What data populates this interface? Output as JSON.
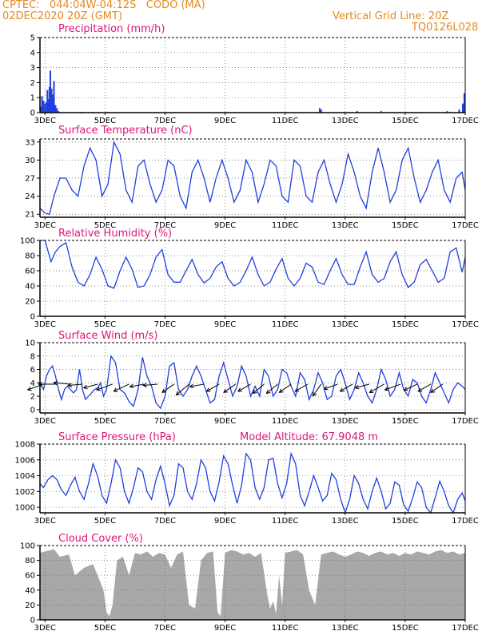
{
  "header": {
    "line1": "CPTEC:   044:04W-04:12S   CODO (MA)",
    "line2": "02DEC2020 20Z (GMT)",
    "right1": "Vertical Grid Line: 20Z",
    "right2": "TQ0126L028"
  },
  "x_axis": {
    "start_day": 2.833,
    "end_day": 17.0,
    "ticks": [
      {
        "day": 3,
        "label": "3DEC"
      },
      {
        "day": 5,
        "label": "5DEC"
      },
      {
        "day": 7,
        "label": "7DEC"
      },
      {
        "day": 9,
        "label": "9DEC"
      },
      {
        "day": 11,
        "label": "11DEC"
      },
      {
        "day": 13,
        "label": "13DEC"
      },
      {
        "day": 15,
        "label": "15DEC"
      },
      {
        "day": 17,
        "label": "17DEC"
      }
    ]
  },
  "chart_data": [
    {
      "type": "bar",
      "title": "Precipitation (mm/h)",
      "ylim": [
        0,
        5
      ],
      "yticks": [
        0,
        1,
        2,
        3,
        4,
        5
      ],
      "color": "#1f3fe0",
      "x": [
        2.85,
        2.9,
        2.95,
        3.0,
        3.05,
        3.08,
        3.12,
        3.15,
        3.18,
        3.22,
        3.26,
        3.3,
        3.35,
        3.4,
        3.45,
        4.2,
        4.6,
        5.1,
        12.15,
        12.2,
        13.4,
        14.2,
        16.4,
        16.8,
        16.92,
        16.97
      ],
      "values": [
        0.4,
        1.1,
        0.8,
        0.6,
        0.7,
        1.5,
        0.9,
        1.7,
        2.8,
        1.6,
        1.2,
        2.1,
        0.5,
        0.3,
        0.1,
        0.05,
        0.05,
        0.05,
        0.3,
        0.2,
        0.1,
        0.1,
        0.1,
        0.2,
        0.6,
        1.3
      ]
    },
    {
      "type": "line",
      "title": "Surface Temperature (nC)",
      "ylim": [
        20.5,
        33.5
      ],
      "yticks": [
        21,
        24,
        27,
        30,
        33
      ],
      "color": "#1f3fe0",
      "x": [
        2.83,
        3.0,
        3.15,
        3.3,
        3.5,
        3.7,
        3.9,
        4.1,
        4.3,
        4.5,
        4.7,
        4.9,
        5.1,
        5.3,
        5.5,
        5.7,
        5.9,
        6.1,
        6.3,
        6.5,
        6.7,
        6.9,
        7.1,
        7.3,
        7.5,
        7.7,
        7.9,
        8.1,
        8.3,
        8.5,
        8.7,
        8.9,
        9.1,
        9.3,
        9.5,
        9.7,
        9.9,
        10.1,
        10.3,
        10.5,
        10.7,
        10.9,
        11.1,
        11.3,
        11.5,
        11.7,
        11.9,
        12.1,
        12.3,
        12.5,
        12.7,
        12.9,
        13.1,
        13.3,
        13.5,
        13.7,
        13.9,
        14.1,
        14.3,
        14.5,
        14.7,
        14.9,
        15.1,
        15.3,
        15.5,
        15.7,
        15.9,
        16.1,
        16.3,
        16.5,
        16.7,
        16.9,
        17.0
      ],
      "values": [
        22,
        21.2,
        21,
        24,
        27,
        27,
        25,
        24,
        29,
        32,
        30,
        24,
        26,
        33,
        31,
        25,
        23,
        29,
        30,
        26,
        23,
        25,
        30,
        29,
        24,
        22,
        28,
        30,
        27,
        23,
        27,
        30,
        27,
        23,
        25,
        30,
        28,
        23,
        26,
        30,
        29,
        24,
        23,
        30,
        29,
        24,
        23,
        28,
        30,
        26,
        23,
        26,
        31,
        28,
        24,
        22,
        28,
        32,
        28,
        23,
        25,
        30,
        32,
        27,
        23,
        25,
        28,
        30,
        25,
        23,
        27,
        28,
        25
      ]
    },
    {
      "type": "line",
      "title": "Relative Humidity (%)",
      "ylim": [
        0,
        100
      ],
      "yticks": [
        0,
        20,
        40,
        60,
        80,
        100
      ],
      "color": "#1f3fe0",
      "x": [
        2.83,
        3.0,
        3.2,
        3.35,
        3.5,
        3.7,
        3.9,
        4.1,
        4.3,
        4.5,
        4.7,
        4.9,
        5.1,
        5.3,
        5.5,
        5.7,
        5.9,
        6.1,
        6.3,
        6.5,
        6.7,
        6.9,
        7.1,
        7.3,
        7.5,
        7.7,
        7.9,
        8.1,
        8.3,
        8.5,
        8.7,
        8.9,
        9.1,
        9.3,
        9.5,
        9.7,
        9.9,
        10.1,
        10.3,
        10.5,
        10.7,
        10.9,
        11.1,
        11.3,
        11.5,
        11.7,
        11.9,
        12.1,
        12.3,
        12.5,
        12.7,
        12.9,
        13.1,
        13.3,
        13.5,
        13.7,
        13.9,
        14.1,
        14.3,
        14.5,
        14.7,
        14.9,
        15.1,
        15.3,
        15.5,
        15.7,
        15.9,
        16.1,
        16.3,
        16.5,
        16.7,
        16.9,
        17.0
      ],
      "values": [
        100,
        100,
        72,
        85,
        92,
        97,
        65,
        45,
        40,
        55,
        78,
        62,
        40,
        37,
        60,
        78,
        62,
        38,
        40,
        55,
        78,
        88,
        55,
        45,
        45,
        60,
        75,
        55,
        44,
        50,
        65,
        72,
        50,
        40,
        45,
        60,
        78,
        55,
        40,
        45,
        62,
        76,
        50,
        40,
        50,
        70,
        65,
        45,
        42,
        60,
        76,
        55,
        42,
        42,
        65,
        85,
        55,
        45,
        50,
        72,
        85,
        55,
        38,
        45,
        68,
        75,
        60,
        45,
        50,
        85,
        90,
        58,
        78
      ]
    },
    {
      "type": "line",
      "title": "Surface Wind (m/s)",
      "ylim": [
        -0.5,
        10
      ],
      "yticks": [
        0,
        2,
        4,
        6,
        8,
        10
      ],
      "color": "#1f3fe0",
      "x": [
        2.83,
        2.95,
        3.05,
        3.15,
        3.25,
        3.35,
        3.45,
        3.55,
        3.65,
        3.75,
        3.85,
        3.95,
        4.05,
        4.15,
        4.25,
        4.35,
        4.45,
        4.55,
        4.65,
        4.75,
        4.85,
        4.95,
        5.05,
        5.2,
        5.35,
        5.5,
        5.65,
        5.8,
        5.95,
        6.1,
        6.25,
        6.4,
        6.55,
        6.7,
        6.85,
        7.0,
        7.15,
        7.3,
        7.45,
        7.6,
        7.75,
        7.9,
        8.05,
        8.2,
        8.35,
        8.5,
        8.65,
        8.8,
        8.95,
        9.1,
        9.25,
        9.4,
        9.55,
        9.7,
        9.85,
        10.0,
        10.15,
        10.3,
        10.45,
        10.6,
        10.75,
        10.9,
        11.05,
        11.2,
        11.35,
        11.5,
        11.65,
        11.8,
        11.95,
        12.1,
        12.25,
        12.4,
        12.55,
        12.7,
        12.85,
        13.0,
        13.15,
        13.3,
        13.45,
        13.6,
        13.75,
        13.9,
        14.05,
        14.2,
        14.35,
        14.5,
        14.65,
        14.8,
        14.95,
        15.1,
        15.25,
        15.4,
        15.55,
        15.7,
        15.85,
        16.0,
        16.15,
        16.3,
        16.45,
        16.6,
        16.75,
        16.9,
        17.0
      ],
      "values": [
        4,
        3,
        5,
        6,
        6.5,
        5,
        3,
        1.5,
        3,
        3.5,
        3,
        2.5,
        3,
        6,
        3,
        1.5,
        2,
        2.5,
        3,
        3.2,
        4,
        2,
        3,
        8,
        7,
        3,
        2.5,
        1.2,
        0.5,
        3,
        7.8,
        5,
        3.5,
        1,
        0.2,
        2,
        6.5,
        7,
        3,
        2,
        3,
        5,
        6.5,
        5,
        3,
        1,
        1.5,
        5,
        7,
        4.5,
        2,
        3.5,
        6.5,
        5,
        2,
        3.5,
        2,
        6,
        5,
        2,
        3,
        6,
        5.5,
        3.5,
        2,
        5.5,
        4.5,
        1.5,
        3,
        5.5,
        4,
        1.5,
        2,
        5,
        6,
        4,
        1.5,
        3,
        5.5,
        4,
        2,
        1,
        3,
        6,
        4.5,
        2,
        3,
        5.5,
        3,
        2,
        4.5,
        4,
        2,
        1,
        3,
        5.5,
        4,
        2.5,
        1,
        3,
        4,
        3.5,
        3
      ]
    },
    {
      "type": "line",
      "title": "Surface Pressure (hPa)",
      "ylim": [
        999.3,
        1008
      ],
      "yticks": [
        1000,
        1002,
        1004,
        1006,
        1008
      ],
      "color": "#1f3fe0",
      "x": [
        2.83,
        2.95,
        3.1,
        3.25,
        3.4,
        3.55,
        3.7,
        3.85,
        4.0,
        4.15,
        4.3,
        4.45,
        4.6,
        4.75,
        4.9,
        5.05,
        5.2,
        5.35,
        5.5,
        5.65,
        5.8,
        5.95,
        6.1,
        6.25,
        6.4,
        6.55,
        6.7,
        6.85,
        7.0,
        7.15,
        7.3,
        7.45,
        7.6,
        7.75,
        7.9,
        8.05,
        8.2,
        8.35,
        8.5,
        8.65,
        8.8,
        8.95,
        9.1,
        9.25,
        9.4,
        9.55,
        9.7,
        9.85,
        10.0,
        10.15,
        10.3,
        10.45,
        10.6,
        10.75,
        10.9,
        11.05,
        11.2,
        11.35,
        11.5,
        11.65,
        11.8,
        11.95,
        12.1,
        12.25,
        12.4,
        12.55,
        12.7,
        12.85,
        13.0,
        13.15,
        13.3,
        13.45,
        13.6,
        13.75,
        13.9,
        14.05,
        14.2,
        14.35,
        14.5,
        14.65,
        14.8,
        14.95,
        15.1,
        15.25,
        15.4,
        15.55,
        15.7,
        15.85,
        16.0,
        16.15,
        16.3,
        16.45,
        16.6,
        16.75,
        16.9,
        17.0
      ],
      "values": [
        1003,
        1002.5,
        1003.5,
        1004,
        1003.5,
        1002.2,
        1001.5,
        1002.8,
        1003.8,
        1002,
        1001,
        1003,
        1005.5,
        1004,
        1001.5,
        1000.5,
        1003,
        1006,
        1005,
        1002,
        1000.5,
        1002.5,
        1005,
        1004.5,
        1002,
        1001,
        1003.5,
        1005.2,
        1003,
        1000.2,
        1001.5,
        1005.5,
        1005,
        1002,
        1001,
        1003,
        1006,
        1005,
        1002,
        1000.8,
        1003.2,
        1006.5,
        1005.5,
        1002.8,
        1000.5,
        1002.8,
        1006.8,
        1006,
        1002.5,
        1001,
        1002.5,
        1006,
        1006.2,
        1003,
        1001.2,
        1003,
        1006.8,
        1005.5,
        1001.5,
        1000.2,
        1002,
        1004,
        1002.5,
        1000.8,
        1001.5,
        1004.3,
        1003.5,
        1001,
        999.3,
        1001,
        1004,
        1003,
        1001,
        999.8,
        1002,
        1003.7,
        1002,
        999.8,
        1000.5,
        1003.2,
        1002.8,
        1000.3,
        999.5,
        1001.2,
        1003.2,
        1002.5,
        1000,
        999.3,
        1001.2,
        1003.3,
        1002,
        1000.2,
        999.3,
        1001,
        1001.8,
        1000.8
      ],
      "annotation": "Model Altitude: 67.9048 m"
    },
    {
      "type": "area",
      "title": "Cloud Cover (%)",
      "ylim": [
        0,
        100
      ],
      "yticks": [
        0,
        20,
        40,
        60,
        80,
        100
      ],
      "color": "#a8a8a8",
      "x": [
        2.83,
        3.0,
        3.3,
        3.5,
        3.8,
        4.0,
        4.3,
        4.6,
        4.8,
        4.95,
        5.05,
        5.15,
        5.25,
        5.4,
        5.6,
        5.8,
        6.0,
        6.2,
        6.4,
        6.6,
        6.8,
        7.0,
        7.2,
        7.4,
        7.6,
        7.8,
        8.0,
        8.2,
        8.4,
        8.6,
        8.75,
        8.85,
        9.0,
        9.2,
        9.4,
        9.6,
        9.8,
        10.0,
        10.2,
        10.4,
        10.5,
        10.6,
        10.7,
        10.8,
        10.9,
        11.0,
        11.2,
        11.4,
        11.6,
        11.8,
        12.0,
        12.2,
        12.4,
        12.6,
        12.8,
        13.0,
        13.2,
        13.4,
        13.6,
        13.8,
        14.0,
        14.2,
        14.4,
        14.6,
        14.8,
        15.0,
        15.2,
        15.4,
        15.6,
        15.8,
        16.0,
        16.2,
        16.4,
        16.6,
        16.8,
        17.0
      ],
      "values": [
        90,
        92,
        95,
        85,
        88,
        60,
        70,
        75,
        55,
        40,
        10,
        5,
        20,
        80,
        85,
        60,
        90,
        88,
        92,
        85,
        90,
        88,
        70,
        88,
        92,
        20,
        15,
        80,
        90,
        92,
        10,
        5,
        90,
        94,
        92,
        88,
        90,
        85,
        90,
        35,
        15,
        25,
        8,
        60,
        20,
        90,
        92,
        94,
        88,
        40,
        20,
        88,
        90,
        92,
        88,
        85,
        88,
        92,
        90,
        86,
        90,
        92,
        88,
        90,
        86,
        90,
        88,
        92,
        90,
        88,
        92,
        94,
        90,
        92,
        88,
        90
      ]
    }
  ],
  "wind_arrows": {
    "note_color": "#000000",
    "items": [
      {
        "day": 2.95,
        "dir_deg": 200,
        "speed": 4
      },
      {
        "day": 3.35,
        "dir_deg": 180,
        "speed": 4
      },
      {
        "day": 3.85,
        "dir_deg": 175,
        "speed": 4
      },
      {
        "day": 4.25,
        "dir_deg": 185,
        "speed": 3
      },
      {
        "day": 4.75,
        "dir_deg": 195,
        "speed": 3
      },
      {
        "day": 5.25,
        "dir_deg": 200,
        "speed": 4
      },
      {
        "day": 5.8,
        "dir_deg": 205,
        "speed": 4
      },
      {
        "day": 6.3,
        "dir_deg": 190,
        "speed": 3
      },
      {
        "day": 6.75,
        "dir_deg": 185,
        "speed": 3
      },
      {
        "day": 7.3,
        "dir_deg": 215,
        "speed": 3
      },
      {
        "day": 7.8,
        "dir_deg": 220,
        "speed": 4
      },
      {
        "day": 8.3,
        "dir_deg": 190,
        "speed": 3
      },
      {
        "day": 8.8,
        "dir_deg": 210,
        "speed": 3
      },
      {
        "day": 9.35,
        "dir_deg": 215,
        "speed": 3
      },
      {
        "day": 9.85,
        "dir_deg": 210,
        "speed": 3
      },
      {
        "day": 10.3,
        "dir_deg": 220,
        "speed": 3
      },
      {
        "day": 10.75,
        "dir_deg": 220,
        "speed": 3
      },
      {
        "day": 11.2,
        "dir_deg": 215,
        "speed": 3
      },
      {
        "day": 11.75,
        "dir_deg": 210,
        "speed": 3
      },
      {
        "day": 12.2,
        "dir_deg": 235,
        "speed": 3
      },
      {
        "day": 12.75,
        "dir_deg": 200,
        "speed": 3
      },
      {
        "day": 13.25,
        "dir_deg": 210,
        "speed": 3
      },
      {
        "day": 13.8,
        "dir_deg": 195,
        "speed": 3
      },
      {
        "day": 14.3,
        "dir_deg": 210,
        "speed": 4
      },
      {
        "day": 14.85,
        "dir_deg": 200,
        "speed": 4
      },
      {
        "day": 15.4,
        "dir_deg": 205,
        "speed": 3
      },
      {
        "day": 15.85,
        "dir_deg": 210,
        "speed": 3
      },
      {
        "day": 16.25,
        "dir_deg": 215,
        "speed": 3
      }
    ]
  }
}
